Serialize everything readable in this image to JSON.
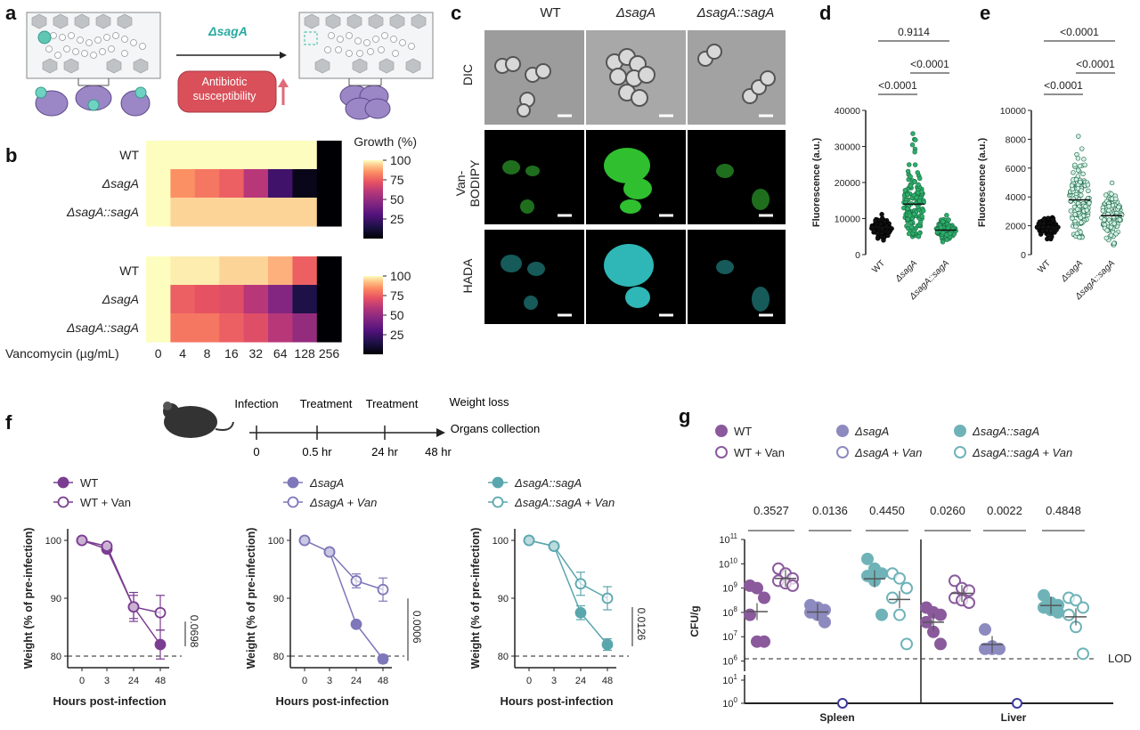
{
  "panel_labels": [
    "a",
    "b",
    "c",
    "d",
    "e",
    "f",
    "g"
  ],
  "panel_a": {
    "mutation_label": "ΔsagA",
    "box_label": "Antibiotic susceptibility"
  },
  "panel_b": {
    "colorbar_title": "Growth (%)",
    "colorbar_ticks": [
      "100",
      "75",
      "50",
      "25"
    ],
    "xlabel": "Vancomycin (µg/mL)",
    "x_ticks": [
      "0",
      "4",
      "8",
      "16",
      "32",
      "64",
      "128",
      "256"
    ]
  },
  "panel_c": {
    "columns": [
      "WT",
      "ΔsagA",
      "ΔsagA::sagA"
    ],
    "rows": [
      "DIC",
      "Van-BODIPY",
      "HADA"
    ]
  },
  "panel_f": {
    "timeline": {
      "events": [
        "Infection",
        "Treatment",
        "Treatment",
        "Weight loss",
        "Organs collection"
      ],
      "times": [
        "0",
        "0.5 hr",
        "24 hr",
        "48 hr"
      ]
    }
  },
  "panel_g": {
    "legend": [
      "WT",
      "WT + Van",
      "ΔsagA",
      "ΔsagA + Van",
      "ΔsagA::sagA",
      "ΔsagA::sagA + Van"
    ],
    "lod_label": "LOD"
  },
  "chart_data": [
    {
      "id": "b_top",
      "type": "heatmap",
      "rows": [
        "WT",
        "ΔsagA",
        "ΔsagA::sagA"
      ],
      "columns": [
        "0",
        "4",
        "8",
        "16",
        "32",
        "64",
        "128",
        "256"
      ],
      "values": [
        [
          100,
          100,
          100,
          100,
          100,
          100,
          100,
          0
        ],
        [
          100,
          85,
          80,
          75,
          60,
          25,
          5,
          0
        ],
        [
          100,
          95,
          95,
          95,
          95,
          95,
          95,
          0
        ]
      ],
      "colorbar": {
        "min": 0,
        "max": 100,
        "title": "Growth (%)"
      }
    },
    {
      "id": "b_bottom",
      "type": "heatmap",
      "rows": [
        "WT",
        "ΔsagA",
        "ΔsagA::sagA"
      ],
      "columns": [
        "0",
        "4",
        "8",
        "16",
        "32",
        "64",
        "128",
        "256"
      ],
      "values": [
        [
          100,
          98,
          98,
          95,
          95,
          90,
          75,
          0
        ],
        [
          100,
          75,
          72,
          70,
          60,
          45,
          15,
          0
        ],
        [
          100,
          80,
          80,
          75,
          70,
          60,
          50,
          0
        ]
      ],
      "colorbar": {
        "min": 0,
        "max": 100,
        "title": "Growth (%)"
      },
      "xlabel": "Vancomycin (µg/mL)"
    },
    {
      "id": "d",
      "type": "scatter",
      "categories": [
        "WT",
        "ΔsagA",
        "ΔsagA::sagA"
      ],
      "ylabel": "Fluorescence (a.u.)",
      "ylim": [
        0,
        40000
      ],
      "yticks": [
        0,
        10000,
        20000,
        30000,
        40000
      ],
      "medians": [
        7500,
        14000,
        6800
      ],
      "spreads": [
        [
          3500,
          11500
        ],
        [
          5000,
          35500
        ],
        [
          3500,
          11500
        ]
      ],
      "comparisons": [
        {
          "pair": [
            "WT",
            "ΔsagA"
          ],
          "p": "<0.0001"
        },
        {
          "pair": [
            "WT",
            "ΔsagA::sagA"
          ],
          "p": "0.9114"
        },
        {
          "pair": [
            "ΔsagA",
            "ΔsagA::sagA"
          ],
          "p": "<0.0001"
        }
      ]
    },
    {
      "id": "e",
      "type": "scatter",
      "categories": [
        "WT",
        "ΔsagA",
        "ΔsagA::sagA"
      ],
      "ylabel": "Fluorescence (a.u.)",
      "ylim": [
        0,
        10000
      ],
      "yticks": [
        0,
        2000,
        4000,
        6000,
        8000,
        10000
      ],
      "medians": [
        1900,
        3800,
        2700
      ],
      "spreads": [
        [
          1000,
          3000
        ],
        [
          1200,
          9000
        ],
        [
          500,
          5000
        ]
      ],
      "comparisons": [
        {
          "pair": [
            "WT",
            "ΔsagA"
          ],
          "p": "<0.0001"
        },
        {
          "pair": [
            "WT",
            "ΔsagA::sagA"
          ],
          "p": "<0.0001"
        },
        {
          "pair": [
            "ΔsagA",
            "ΔsagA::sagA"
          ],
          "p": "<0.0001"
        }
      ]
    },
    {
      "id": "f1",
      "type": "line",
      "x": [
        "0",
        "3",
        "24",
        "48"
      ],
      "xlabel": "Hours post-infection",
      "ylabel": "Weight (% of pre-infection)",
      "ylim": [
        78,
        102
      ],
      "yticks": [
        80,
        90,
        100
      ],
      "reference_line": 80,
      "series": [
        {
          "name": "WT",
          "values": [
            100,
            98.5,
            88.5,
            82
          ],
          "errors": [
            0.3,
            0.5,
            2,
            2.5
          ]
        },
        {
          "name": "WT + Van",
          "values": [
            100,
            99,
            88.5,
            87.5
          ],
          "errors": [
            0.3,
            0.5,
            2.5,
            3
          ]
        }
      ],
      "pvalue": "0.0698"
    },
    {
      "id": "f2",
      "type": "line",
      "x": [
        "0",
        "3",
        "24",
        "48"
      ],
      "xlabel": "Hours post-infection",
      "ylabel": "Weight (% of pre-infection)",
      "ylim": [
        78,
        102
      ],
      "yticks": [
        80,
        90,
        100
      ],
      "reference_line": 80,
      "series": [
        {
          "name": "ΔsagA",
          "values": [
            100,
            98,
            85.5,
            79.5
          ],
          "errors": [
            0.3,
            0.5,
            0.5,
            0.7
          ]
        },
        {
          "name": "ΔsagA + Van",
          "values": [
            100,
            98,
            93,
            91.5
          ],
          "errors": [
            0.3,
            0.5,
            1.2,
            2
          ]
        }
      ],
      "pvalue": "0.0006"
    },
    {
      "id": "f3",
      "type": "line",
      "x": [
        "0",
        "3",
        "24",
        "48"
      ],
      "xlabel": "Hours post-infection",
      "ylabel": "Weight (% of pre-infection)",
      "ylim": [
        78,
        102
      ],
      "yticks": [
        80,
        90,
        100
      ],
      "reference_line": 80,
      "series": [
        {
          "name": "ΔsagA::sagA",
          "values": [
            100,
            99,
            87.5,
            82
          ],
          "errors": [
            0.3,
            0.5,
            1.2,
            1
          ]
        },
        {
          "name": "ΔsagA::sagA + Van",
          "values": [
            100,
            99,
            92.5,
            90
          ],
          "errors": [
            0.3,
            0.5,
            2,
            2
          ]
        }
      ],
      "pvalue": "0.0126"
    },
    {
      "id": "g",
      "type": "scatter",
      "ylabel": "CFU/g",
      "groups": [
        "Spleen",
        "Liver"
      ],
      "yticks_main": [
        "10^6",
        "10^7",
        "10^8",
        "10^9",
        "10^10",
        "10^11"
      ],
      "yticks_lower": [
        "10^0",
        "10^1"
      ],
      "lod": "LOD",
      "series": [
        {
          "name": "WT",
          "group": "Spleen",
          "log_values": [
            9.1,
            9.0,
            8.6,
            7.9,
            6.8,
            6.8
          ]
        },
        {
          "name": "WT + Van",
          "group": "Spleen",
          "log_values": [
            9.8,
            9.6,
            9.4,
            9.3,
            9.2,
            9.1
          ]
        },
        {
          "name": "ΔsagA",
          "group": "Spleen",
          "log_values": [
            8.3,
            8.2,
            8.1,
            8.0,
            7.9,
            7.6
          ],
          "below_lod_at_zero": true
        },
        {
          "name": "ΔsagA + Van",
          "group": "Spleen",
          "log_values": [],
          "below_lod_at_zero": true
        },
        {
          "name": "ΔsagA::sagA",
          "group": "Spleen",
          "log_values": [
            10.2,
            9.8,
            9.6,
            9.5,
            9.3,
            7.9
          ]
        },
        {
          "name": "ΔsagA::sagA + Van",
          "group": "Spleen",
          "log_values": [
            9.6,
            9.4,
            9.0,
            8.6,
            7.9,
            6.7
          ]
        },
        {
          "name": "WT",
          "group": "Liver",
          "log_values": [
            8.2,
            8.0,
            7.9,
            7.6,
            7.2,
            6.7
          ]
        },
        {
          "name": "WT + Van",
          "group": "Liver",
          "log_values": [
            9.3,
            9.0,
            8.9,
            8.6,
            8.5,
            8.4
          ]
        },
        {
          "name": "ΔsagA",
          "group": "Liver",
          "log_values": [
            7.3,
            6.6,
            6.5,
            6.5,
            6.5
          ],
          "below_lod_at_zero": true
        },
        {
          "name": "ΔsagA + Van",
          "group": "Liver",
          "log_values": [],
          "below_lod_at_zero": true
        },
        {
          "name": "ΔsagA::sagA",
          "group": "Liver",
          "log_values": [
            8.7,
            8.4,
            8.3,
            8.2,
            8.1,
            8.0
          ]
        },
        {
          "name": "ΔsagA::sagA + Van",
          "group": "Liver",
          "log_values": [
            8.6,
            8.5,
            8.2,
            7.9,
            7.4,
            6.3
          ]
        }
      ],
      "pvalues": [
        "0.3527",
        "0.0136",
        "0.4450",
        "0.0260",
        "0.0022",
        "0.4848"
      ]
    }
  ]
}
